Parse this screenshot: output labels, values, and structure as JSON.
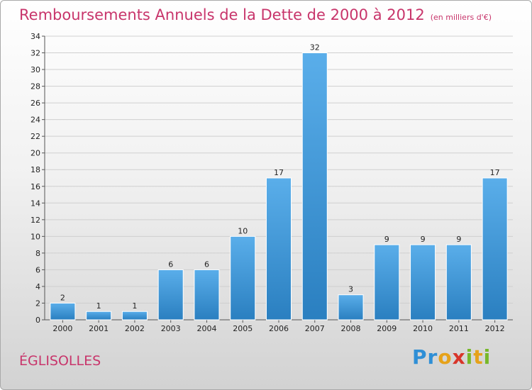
{
  "colors": {
    "title": "#c8356b",
    "bar_top": "#5aaeea",
    "bar_bottom": "#2a7fc0",
    "grid": "#cfcfcf"
  },
  "header": {
    "title": "Remboursements Annuels de la Dette de 2000 à 2012",
    "unit": "(en milliers d'€)"
  },
  "footer": {
    "commune": "ÉGLISOLLES",
    "logo_letters": [
      "Pr",
      "o",
      "x",
      "i",
      "t",
      "i"
    ]
  },
  "chart_data": {
    "type": "bar",
    "title": "Remboursements Annuels de la Dette de 2000 à 2012",
    "xlabel": "",
    "ylabel": "",
    "categories": [
      "2000",
      "2001",
      "2002",
      "2003",
      "2004",
      "2005",
      "2006",
      "2007",
      "2008",
      "2009",
      "2010",
      "2011",
      "2012"
    ],
    "values": [
      2,
      1,
      1,
      6,
      6,
      10,
      17,
      32,
      3,
      9,
      9,
      9,
      17
    ],
    "ylim": [
      0,
      34
    ],
    "yticks": [
      0,
      2,
      4,
      6,
      8,
      10,
      12,
      14,
      16,
      18,
      20,
      22,
      24,
      26,
      28,
      30,
      32,
      34
    ],
    "grid": true,
    "legend": "none"
  }
}
